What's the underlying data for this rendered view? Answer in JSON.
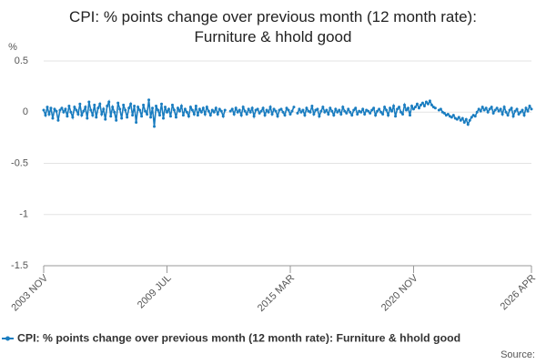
{
  "chart_data": {
    "type": "line",
    "title": "CPI: % points change over previous month (12 month rate): Furniture & hhold good",
    "y_label": "%",
    "source": "Source:",
    "categories": [
      "2003 NOV",
      null,
      null,
      null,
      null,
      null,
      null,
      null,
      null,
      null,
      null,
      null,
      null,
      null,
      null,
      null,
      null,
      null,
      null,
      null,
      null,
      null,
      null,
      null,
      null,
      null,
      null,
      null,
      null,
      null,
      null,
      null,
      null,
      null,
      null,
      null,
      null,
      null,
      null,
      null,
      null,
      null,
      null,
      null,
      null,
      null,
      null,
      null,
      null,
      null,
      null,
      null,
      null,
      null,
      null,
      null,
      null,
      null,
      null,
      null,
      null,
      null,
      null,
      null,
      null,
      null,
      null,
      null,
      "2009 JUL",
      null,
      null,
      null,
      null,
      null,
      null,
      null,
      null,
      null,
      null,
      null,
      null,
      null,
      null,
      null,
      null,
      null,
      null,
      null,
      null,
      null,
      null,
      null,
      null,
      null,
      null,
      null,
      null,
      null,
      null,
      null,
      null,
      null,
      null,
      null,
      null,
      null,
      null,
      null,
      null,
      null,
      null,
      null,
      null,
      null,
      null,
      null,
      null,
      null,
      null,
      null,
      null,
      null,
      null,
      null,
      null,
      null,
      null,
      null,
      null,
      null,
      null,
      null,
      null,
      null,
      null,
      null,
      "2015 MAR",
      null,
      null,
      null,
      null,
      null,
      null,
      null,
      null,
      null,
      null,
      null,
      null,
      null,
      null,
      null,
      null,
      null,
      null,
      null,
      null,
      null,
      null,
      null,
      null,
      null,
      null,
      null,
      null,
      null,
      null,
      null,
      null,
      null,
      null,
      null,
      null,
      null,
      null,
      null,
      null,
      null,
      null,
      null,
      null,
      null,
      null,
      null,
      null,
      null,
      null,
      null,
      null,
      null,
      null,
      null,
      null,
      null,
      null,
      null,
      null,
      null,
      null,
      null,
      null,
      null,
      null,
      null,
      "2020 NOV",
      null,
      null,
      null,
      null,
      null,
      null,
      null,
      null,
      null,
      null,
      null,
      null,
      null,
      null,
      null,
      null,
      null,
      null,
      null,
      null,
      null,
      null,
      null,
      null,
      null,
      null,
      null,
      null,
      null,
      null,
      null,
      null,
      null,
      null,
      null,
      null,
      null,
      null,
      null,
      null,
      null,
      null,
      null,
      null,
      null,
      null,
      null,
      null,
      null,
      null,
      null,
      null,
      null,
      null,
      null,
      null,
      null,
      null,
      null,
      null,
      null,
      null,
      null,
      null,
      "2026 APR"
    ],
    "series": [
      {
        "name": "CPI: % points change over previous month (12 month rate): Furniture & hhold good",
        "color": "#1a7dc0",
        "values": [
          0.02,
          -0.03,
          0.05,
          -0.02,
          0.04,
          -0.06,
          0.03,
          0.01,
          -0.08,
          0.02,
          0.04,
          0.0,
          0.03,
          -0.04,
          0.06,
          0.0,
          -0.05,
          0.05,
          0.02,
          -0.02,
          0.08,
          -0.03,
          0.01,
          0.05,
          -0.06,
          0.1,
          0.02,
          -0.03,
          0.07,
          -0.05,
          0.04,
          0.08,
          -0.02,
          0.03,
          -0.07,
          0.06,
          0.1,
          -0.04,
          0.05,
          0.0,
          -0.08,
          0.09,
          0.03,
          -0.06,
          0.07,
          0.02,
          -0.05,
          0.04,
          0.08,
          -0.03,
          0.06,
          -0.1,
          0.05,
          0.02,
          -0.04,
          0.07,
          0.01,
          -0.02,
          0.12,
          -0.05,
          0.04,
          -0.14,
          0.06,
          0.02,
          -0.03,
          0.08,
          -0.06,
          0.05,
          0.0,
          0.03,
          -0.04,
          0.07,
          0.02,
          -0.05,
          0.04,
          0.01,
          0.06,
          -0.03,
          0.03,
          0.0,
          -0.04,
          0.05,
          0.02,
          -0.02,
          0.06,
          -0.03,
          0.03,
          0.0,
          0.04,
          -0.02,
          0.05,
          0.01,
          -0.03,
          0.02,
          0.0,
          0.04,
          -0.02,
          0.03,
          0.01,
          -0.04,
          0.02,
          null,
          null,
          0.01,
          0.03,
          -0.02,
          0.04,
          0.0,
          0.02,
          -0.03,
          0.05,
          0.01,
          -0.02,
          0.03,
          0.0,
          0.04,
          -0.04,
          0.02,
          0.03,
          -0.01,
          0.01,
          0.04,
          -0.03,
          0.02,
          0.0,
          0.05,
          -0.02,
          0.03,
          0.01,
          -0.04,
          0.02,
          0.03,
          0.0,
          -0.03,
          0.04,
          0.02,
          -0.02,
          0.01,
          0.05,
          null,
          -0.01,
          0.03,
          0.0,
          0.02,
          -0.03,
          0.04,
          0.01,
          0.0,
          0.06,
          -0.02,
          0.02,
          0.03,
          -0.04,
          0.01,
          0.05,
          0.0,
          0.02,
          -0.02,
          0.04,
          0.01,
          -0.03,
          0.03,
          0.0,
          0.02,
          -0.02,
          0.05,
          0.01,
          -0.01,
          0.03,
          0.0,
          -0.03,
          0.02,
          0.04,
          -0.02,
          0.01,
          0.0,
          0.03,
          -0.02,
          0.02,
          0.01,
          -0.01,
          0.02,
          0.04,
          -0.03,
          0.01,
          0.03,
          0.0,
          -0.02,
          0.05,
          0.02,
          -0.03,
          0.04,
          0.01,
          0.06,
          -0.04,
          0.03,
          0.05,
          0.0,
          -0.02,
          0.07,
          0.02,
          0.04,
          -0.03,
          0.06,
          0.03,
          0.05,
          0.08,
          0.04,
          0.07,
          0.09,
          0.06,
          0.1,
          0.08,
          0.11,
          0.07,
          0.05,
          0.04,
          null,
          0.02,
          0.03,
          0.0,
          -0.01,
          -0.03,
          -0.02,
          -0.04,
          -0.05,
          -0.03,
          -0.06,
          -0.07,
          -0.05,
          -0.08,
          -0.06,
          -0.1,
          -0.07,
          -0.12,
          -0.08,
          -0.05,
          -0.03,
          -0.04,
          0.0,
          0.03,
          0.01,
          0.05,
          0.02,
          0.04,
          0.0,
          0.03,
          0.05,
          -0.01,
          0.02,
          0.04,
          0.01,
          0.03,
          -0.02,
          0.05,
          0.0,
          -0.03,
          0.02,
          0.04,
          -0.04,
          0.01,
          0.03,
          -0.02,
          0.0,
          0.02,
          -0.03,
          0.04,
          0.01,
          0.06,
          0.03
        ]
      }
    ],
    "ylim": [
      -1.5,
      0.5
    ],
    "yticks": [
      -1.5,
      -1,
      -0.5,
      0,
      0.5
    ],
    "grid": true
  }
}
